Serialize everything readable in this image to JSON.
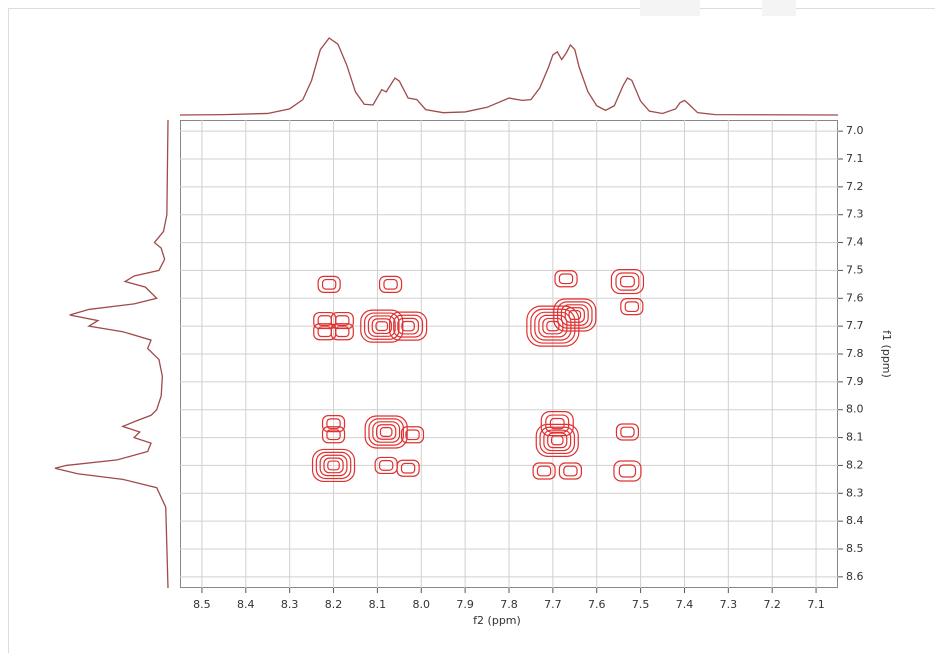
{
  "chart_data": {
    "type": "contour2d",
    "x_label": "f2 (ppm)",
    "y_label": "f1 (ppm)",
    "xlim": [
      8.55,
      7.05
    ],
    "ylim": [
      6.96,
      8.64
    ],
    "xticks": [
      8.5,
      8.4,
      8.3,
      8.2,
      8.1,
      {
        "value": 8.0,
        "label": "8.0"
      },
      7.9,
      7.8,
      7.7,
      7.6,
      7.5,
      7.4,
      7.3,
      7.2,
      7.1
    ],
    "yticks": [
      {
        "value": 7.0,
        "label": "7.0"
      },
      7.1,
      7.2,
      7.3,
      7.4,
      7.5,
      7.6,
      7.7,
      7.8,
      7.9,
      {
        "value": 8.0,
        "label": "8.0"
      },
      8.1,
      8.2,
      8.3,
      8.4,
      8.5,
      8.6
    ],
    "grid": true,
    "color": "#e03030",
    "projection_color": "#a04a4a",
    "peaks": {
      "x": [
        8.21,
        8.07,
        7.67,
        7.53,
        8.22,
        8.22,
        8.18,
        8.18,
        8.09,
        8.03,
        7.7,
        7.65,
        7.52,
        8.2,
        8.2,
        8.08,
        8.02,
        7.69,
        7.69,
        7.53,
        8.2,
        8.08,
        8.03,
        7.72,
        7.66,
        7.53
      ],
      "y": [
        7.55,
        7.55,
        7.53,
        7.54,
        7.68,
        7.72,
        7.68,
        7.72,
        7.7,
        7.7,
        7.7,
        7.66,
        7.63,
        8.05,
        8.09,
        8.08,
        8.09,
        8.05,
        8.11,
        8.08,
        8.2,
        8.2,
        8.21,
        8.22,
        8.22,
        8.22
      ],
      "size": [
        1,
        1,
        1,
        2,
        1,
        1,
        1,
        1,
        3,
        2.5,
        4,
        3,
        1,
        1,
        1,
        3,
        1,
        2,
        3,
        1,
        3,
        1,
        1,
        1,
        1,
        1.5
      ]
    },
    "f2_projection": {
      "x": [
        8.55,
        8.45,
        8.35,
        8.3,
        8.27,
        8.25,
        8.23,
        8.21,
        8.19,
        8.17,
        8.15,
        8.13,
        8.11,
        8.09,
        8.08,
        8.06,
        8.05,
        8.03,
        8.01,
        7.99,
        7.95,
        7.9,
        7.85,
        7.8,
        7.77,
        7.75,
        7.73,
        7.71,
        7.7,
        7.69,
        7.68,
        7.67,
        7.66,
        7.65,
        7.64,
        7.62,
        7.6,
        7.58,
        7.56,
        7.54,
        7.53,
        7.52,
        7.5,
        7.48,
        7.45,
        7.42,
        7.41,
        7.4,
        7.39,
        7.37,
        7.33,
        7.05
      ],
      "values": [
        0,
        0.5,
        2,
        8,
        20,
        45,
        85,
        100,
        92,
        65,
        30,
        14,
        13,
        33,
        30,
        48,
        44,
        22,
        20,
        7,
        3,
        4,
        10,
        22,
        19,
        20,
        35,
        62,
        78,
        82,
        72,
        80,
        91,
        85,
        62,
        30,
        12,
        6,
        12,
        38,
        48,
        45,
        18,
        5,
        2,
        8,
        16,
        19,
        14,
        3,
        0.5,
        0
      ]
    },
    "f1_projection": {
      "x": [
        6.96,
        7.3,
        7.36,
        7.4,
        7.42,
        7.46,
        7.5,
        7.52,
        7.54,
        7.56,
        7.6,
        7.62,
        7.64,
        7.66,
        7.68,
        7.7,
        7.72,
        7.75,
        7.78,
        7.82,
        7.88,
        7.95,
        8.0,
        8.02,
        8.04,
        8.06,
        8.08,
        8.1,
        8.12,
        8.15,
        8.18,
        8.2,
        8.21,
        8.23,
        8.25,
        8.28,
        8.35,
        8.64
      ],
      "values": [
        0,
        1,
        4,
        12,
        6,
        3,
        8,
        30,
        38,
        20,
        10,
        30,
        70,
        87,
        62,
        70,
        40,
        15,
        18,
        8,
        5,
        6,
        10,
        15,
        28,
        40,
        25,
        30,
        15,
        18,
        45,
        90,
        100,
        80,
        40,
        10,
        2,
        0
      ]
    }
  }
}
